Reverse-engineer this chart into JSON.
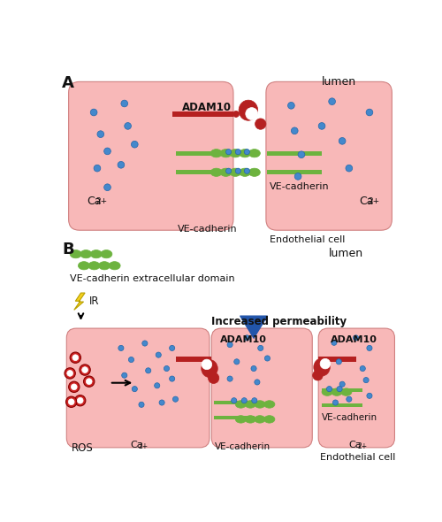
{
  "bg_color": "#ffffff",
  "cell_color": "#f8b8b8",
  "cell_edge_color": "#d08080",
  "green_color": "#6db33f",
  "red_color": "#b52020",
  "blue_dot_color": "#4488cc",
  "red_dot_color": "#cc2222",
  "blue_arrow_color": "#2255aa",
  "text_color": "#111111",
  "lumen_label": "lumen",
  "endothelial_label": "Endothelial cell",
  "adam10_label": "ADAM10",
  "vecadherin_label": "VE-cadherin",
  "ca_label": "Ca",
  "ca_sup": "2+",
  "ir_label": "IR",
  "ros_label": "ROS",
  "increased_perm_label": "Increased permeability",
  "ve_extra_label": "VE-cadherin extracellular domain",
  "panel_a_label": "A",
  "panel_b_label": "B"
}
